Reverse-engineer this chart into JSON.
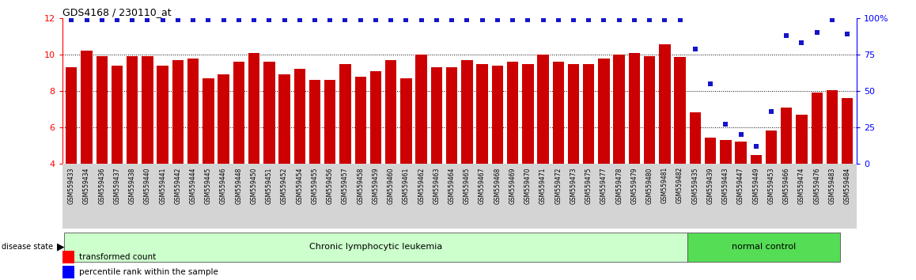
{
  "title": "GDS4168 / 230110_at",
  "categories": [
    "GSM559433",
    "GSM559434",
    "GSM559436",
    "GSM559437",
    "GSM559438",
    "GSM559440",
    "GSM559441",
    "GSM559442",
    "GSM559444",
    "GSM559445",
    "GSM559446",
    "GSM559448",
    "GSM559450",
    "GSM559451",
    "GSM559452",
    "GSM559454",
    "GSM559455",
    "GSM559456",
    "GSM559457",
    "GSM559458",
    "GSM559459",
    "GSM559460",
    "GSM559461",
    "GSM559462",
    "GSM559463",
    "GSM559464",
    "GSM559465",
    "GSM559467",
    "GSM559468",
    "GSM559469",
    "GSM559470",
    "GSM559471",
    "GSM559472",
    "GSM559473",
    "GSM559475",
    "GSM559477",
    "GSM559478",
    "GSM559479",
    "GSM559480",
    "GSM559481",
    "GSM559482",
    "GSM559435",
    "GSM559439",
    "GSM559443",
    "GSM559447",
    "GSM559449",
    "GSM559453",
    "GSM559466",
    "GSM559474",
    "GSM559476",
    "GSM559483",
    "GSM559484"
  ],
  "bar_values": [
    9.3,
    10.2,
    9.9,
    9.4,
    9.9,
    9.9,
    9.4,
    9.7,
    9.8,
    8.7,
    8.9,
    9.6,
    10.1,
    9.6,
    8.9,
    9.2,
    8.6,
    8.6,
    9.5,
    8.8,
    9.1,
    9.7,
    8.7,
    10.0,
    9.3,
    9.3,
    9.7,
    9.5,
    9.4,
    9.6,
    9.5,
    10.0,
    9.6,
    9.5,
    9.5,
    9.8,
    10.0,
    10.1,
    9.9,
    10.55,
    9.85,
    6.85,
    5.45,
    5.3,
    5.2,
    4.5,
    5.85,
    7.1,
    6.7,
    7.9,
    8.05,
    7.6
  ],
  "percentile_values": [
    99,
    99,
    99,
    99,
    99,
    99,
    99,
    99,
    99,
    99,
    99,
    99,
    99,
    99,
    99,
    99,
    99,
    99,
    99,
    99,
    99,
    99,
    99,
    99,
    99,
    99,
    99,
    99,
    99,
    99,
    99,
    99,
    99,
    99,
    99,
    99,
    99,
    99,
    99,
    99,
    99,
    79,
    55,
    27,
    20,
    12,
    36,
    88,
    83,
    90,
    99,
    89
  ],
  "disease_groups": [
    {
      "label": "Chronic lymphocytic leukemia",
      "start": 0,
      "end": 41,
      "color": "#ccffcc"
    },
    {
      "label": "normal control",
      "start": 41,
      "end": 51,
      "color": "#55dd55"
    }
  ],
  "bar_color": "#cc0000",
  "dot_color": "#1414cc",
  "left_ylim": [
    4,
    12
  ],
  "left_yticks": [
    4,
    6,
    8,
    10,
    12
  ],
  "right_ylim": [
    0,
    100
  ],
  "right_yticks": [
    0,
    25,
    50,
    75,
    100
  ],
  "right_yticklabels": [
    "0",
    "25",
    "50",
    "75",
    "100%"
  ],
  "grid_values": [
    6,
    8,
    10
  ],
  "background_color": "#ffffff",
  "tick_bg_color": "#d4d4d4",
  "figsize": [
    11.58,
    3.54
  ],
  "dpi": 100
}
